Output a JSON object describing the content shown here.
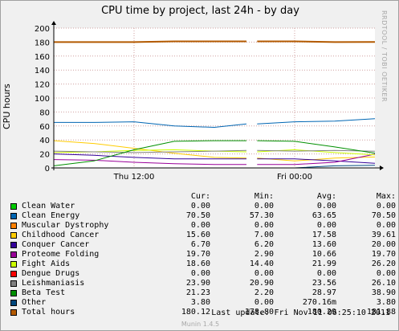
{
  "chart_data": {
    "type": "line",
    "title": "CPU time by project, last 24h - by day",
    "ylabel": "CPU hours",
    "xlabel": "",
    "ylim": [
      0,
      200
    ],
    "y_ticks": [
      "0",
      "20",
      "40",
      "60",
      "80",
      "100",
      "120",
      "140",
      "160",
      "180",
      "200"
    ],
    "x_ticks": [
      "Thu 12:00",
      "Fri 00:00"
    ],
    "x_range_hours": [
      -24,
      0
    ],
    "x_tick_hours": [
      -18,
      -6
    ],
    "gap_hours": [
      -9.6,
      -8.8
    ],
    "grid": true,
    "sample_hours": [
      -24,
      -21,
      -18,
      -15,
      -12,
      -9.6,
      -8.8,
      -6,
      -3,
      0
    ],
    "series": [
      {
        "name": "Clean Water",
        "color": "#00cc00",
        "values": [
          0,
          0,
          0,
          0,
          0,
          0,
          0,
          0,
          0,
          0
        ]
      },
      {
        "name": "Clean Energy",
        "color": "#0066b3",
        "values": [
          65,
          65,
          66,
          60,
          58,
          63,
          63,
          66,
          67,
          70.5
        ]
      },
      {
        "name": "Muscular Dystrophy",
        "color": "#ff8000",
        "values": [
          0,
          0,
          0,
          0,
          0,
          0,
          0,
          0,
          0,
          0
        ]
      },
      {
        "name": "Childhood Cancer",
        "color": "#ffcc00",
        "values": [
          39,
          35,
          28,
          21,
          15,
          14,
          14,
          10,
          14,
          15.6
        ]
      },
      {
        "name": "Conquer Cancer",
        "color": "#330099",
        "values": [
          20,
          18,
          15,
          13,
          13,
          13,
          13,
          13,
          10,
          6.7
        ]
      },
      {
        "name": "Proteome Folding",
        "color": "#990099",
        "values": [
          12,
          11,
          8,
          6,
          5,
          5,
          5,
          5,
          8,
          19.7
        ]
      },
      {
        "name": "Fight Aids",
        "color": "#ccff00",
        "values": [
          22,
          23,
          25,
          26,
          24,
          23,
          23,
          26,
          22,
          18.6
        ]
      },
      {
        "name": "Dengue Drugs",
        "color": "#ff0000",
        "values": [
          0,
          0,
          0,
          0,
          0,
          0,
          0,
          0,
          0,
          0
        ]
      },
      {
        "name": "Leishmaniasis",
        "color": "#808080",
        "values": [
          24,
          23,
          22,
          23,
          24,
          25,
          25,
          24,
          25,
          23.9
        ]
      },
      {
        "name": "Beta Test",
        "color": "#008f00",
        "values": [
          3,
          10,
          26,
          38,
          39,
          39,
          39,
          38,
          30,
          21.2
        ]
      },
      {
        "name": "Other",
        "color": "#00487d",
        "values": [
          0,
          0,
          0,
          0,
          0,
          0,
          0,
          0,
          3,
          3.8
        ]
      },
      {
        "name": "Total hours",
        "color": "#b35a00",
        "values": [
          180,
          180,
          180,
          181,
          181,
          181,
          181,
          181,
          180,
          180.12
        ]
      }
    ]
  },
  "side_text": "RRDTOOL / TOBI OETIKER",
  "legend": {
    "headers": {
      "cur": "Cur:",
      "min": "Min:",
      "avg": "Avg:",
      "max": "Max:"
    },
    "rows": [
      {
        "name": "Clean Water",
        "color": "#00cc00",
        "cur": "0.00",
        "min": "0.00",
        "avg": "0.00",
        "max": "0.00"
      },
      {
        "name": "Clean Energy",
        "color": "#0066b3",
        "cur": "70.50",
        "min": "57.30",
        "avg": "63.65",
        "max": "70.50"
      },
      {
        "name": "Muscular Dystrophy",
        "color": "#ff8000",
        "cur": "0.00",
        "min": "0.00",
        "avg": "0.00",
        "max": "0.00"
      },
      {
        "name": "Childhood Cancer",
        "color": "#ffcc00",
        "cur": "15.60",
        "min": "7.00",
        "avg": "17.58",
        "max": "39.61"
      },
      {
        "name": "Conquer Cancer",
        "color": "#330099",
        "cur": "6.70",
        "min": "6.20",
        "avg": "13.60",
        "max": "20.00"
      },
      {
        "name": "Proteome Folding",
        "color": "#990099",
        "cur": "19.70",
        "min": "2.90",
        "avg": "10.66",
        "max": "19.70"
      },
      {
        "name": "Fight Aids",
        "color": "#ccff00",
        "cur": "18.60",
        "min": "14.40",
        "avg": "21.99",
        "max": "26.20"
      },
      {
        "name": "Dengue Drugs",
        "color": "#ff0000",
        "cur": "0.00",
        "min": "0.00",
        "avg": "0.00",
        "max": "0.00"
      },
      {
        "name": "Leishmaniasis",
        "color": "#808080",
        "cur": "23.90",
        "min": "20.90",
        "avg": "23.56",
        "max": "26.10"
      },
      {
        "name": "Beta Test",
        "color": "#008f00",
        "cur": "21.23",
        "min": "2.20",
        "avg": "28.97",
        "max": "38.90"
      },
      {
        "name": "Other",
        "color": "#00487d",
        "cur": "3.80",
        "min": "0.00",
        "avg": "270.16m",
        "max": "3.80"
      },
      {
        "name": "Total hours",
        "color": "#b35a00",
        "cur": "180.12",
        "min": "178.80",
        "avg": "180.29",
        "max": "181.88"
      }
    ]
  },
  "last_update": "Last update: Fri Nov 11 06:25:10 2011",
  "version": "Munin 1.4.5"
}
